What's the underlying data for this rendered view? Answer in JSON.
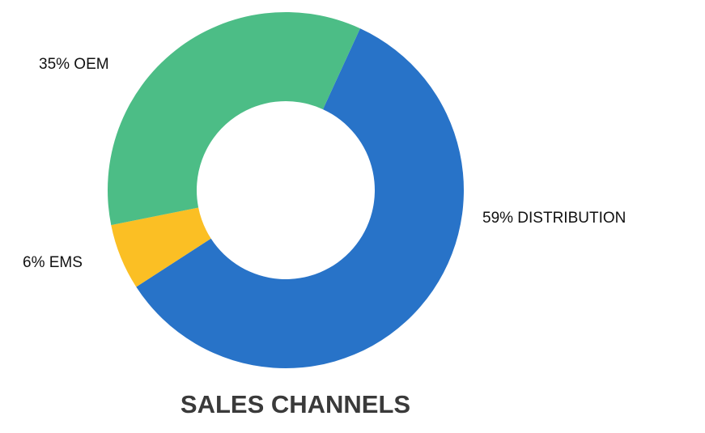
{
  "chart_data": {
    "type": "donut",
    "title": "SALES CHANNELS",
    "values": [
      59,
      6,
      35
    ],
    "value_labels": [
      "59% DISTRIBUTION",
      "6% EMS",
      "35% OEM"
    ],
    "colors": [
      "#2873c8",
      "#fbbf24",
      "#4cbd86"
    ]
  }
}
